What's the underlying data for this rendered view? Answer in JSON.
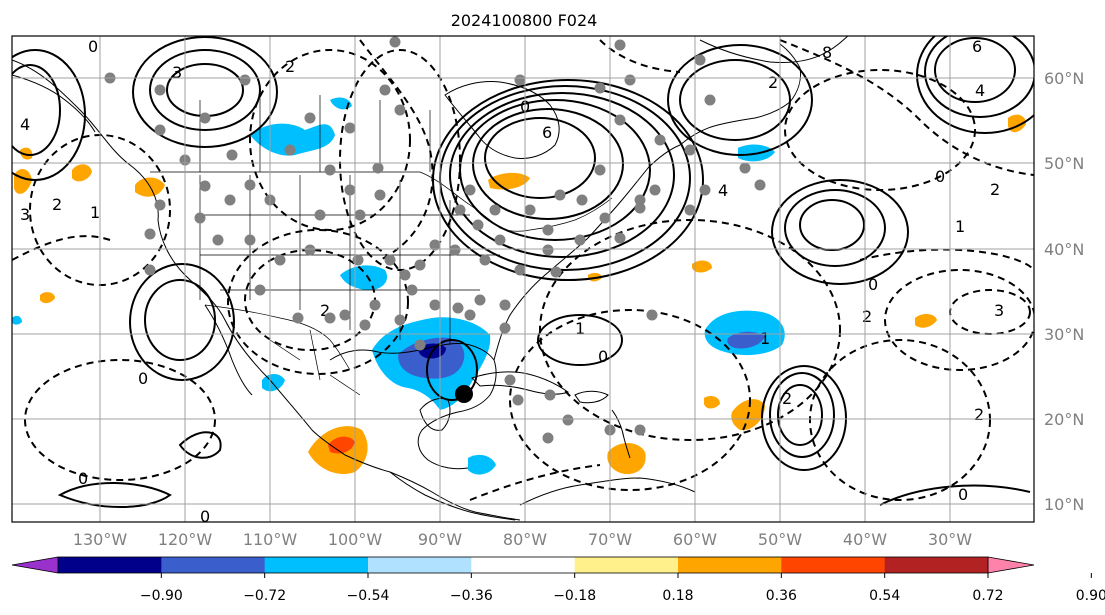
{
  "title": "2024100800 F024",
  "longitude_labels": [
    "130°W",
    "120°W",
    "110°W",
    "100°W",
    "90°W",
    "80°W",
    "70°W",
    "60°W",
    "50°W",
    "40°W",
    "30°W"
  ],
  "latitude_labels": [
    "60°N",
    "50°N",
    "40°N",
    "30°N",
    "20°N",
    "10°N"
  ],
  "colorbar": {
    "ticks": [
      "−0.90",
      "−0.72",
      "−0.54",
      "−0.36",
      "−0.18",
      "0.18",
      "0.36",
      "0.54",
      "0.72",
      "0.90"
    ],
    "colors": [
      "#9932cc",
      "#00008b",
      "#3a5fcd",
      "#00bfff",
      "#b0e2ff",
      "#ffffff",
      "#fff08c",
      "#ffa500",
      "#ff4500",
      "#b22222",
      "#ff82ab"
    ]
  },
  "contour_labels": [
    "0",
    "3",
    "2",
    "4",
    "1",
    "2",
    "3",
    "6",
    "0",
    "8",
    "6",
    "4",
    "2",
    "1",
    "2",
    "0",
    "2",
    "1",
    "0",
    "0",
    "1",
    "2",
    "3",
    "2",
    "0",
    "0",
    "0",
    "2",
    "4",
    "0"
  ],
  "markers": {
    "point_color": "#808080",
    "storm_center_color": "#000000"
  }
}
